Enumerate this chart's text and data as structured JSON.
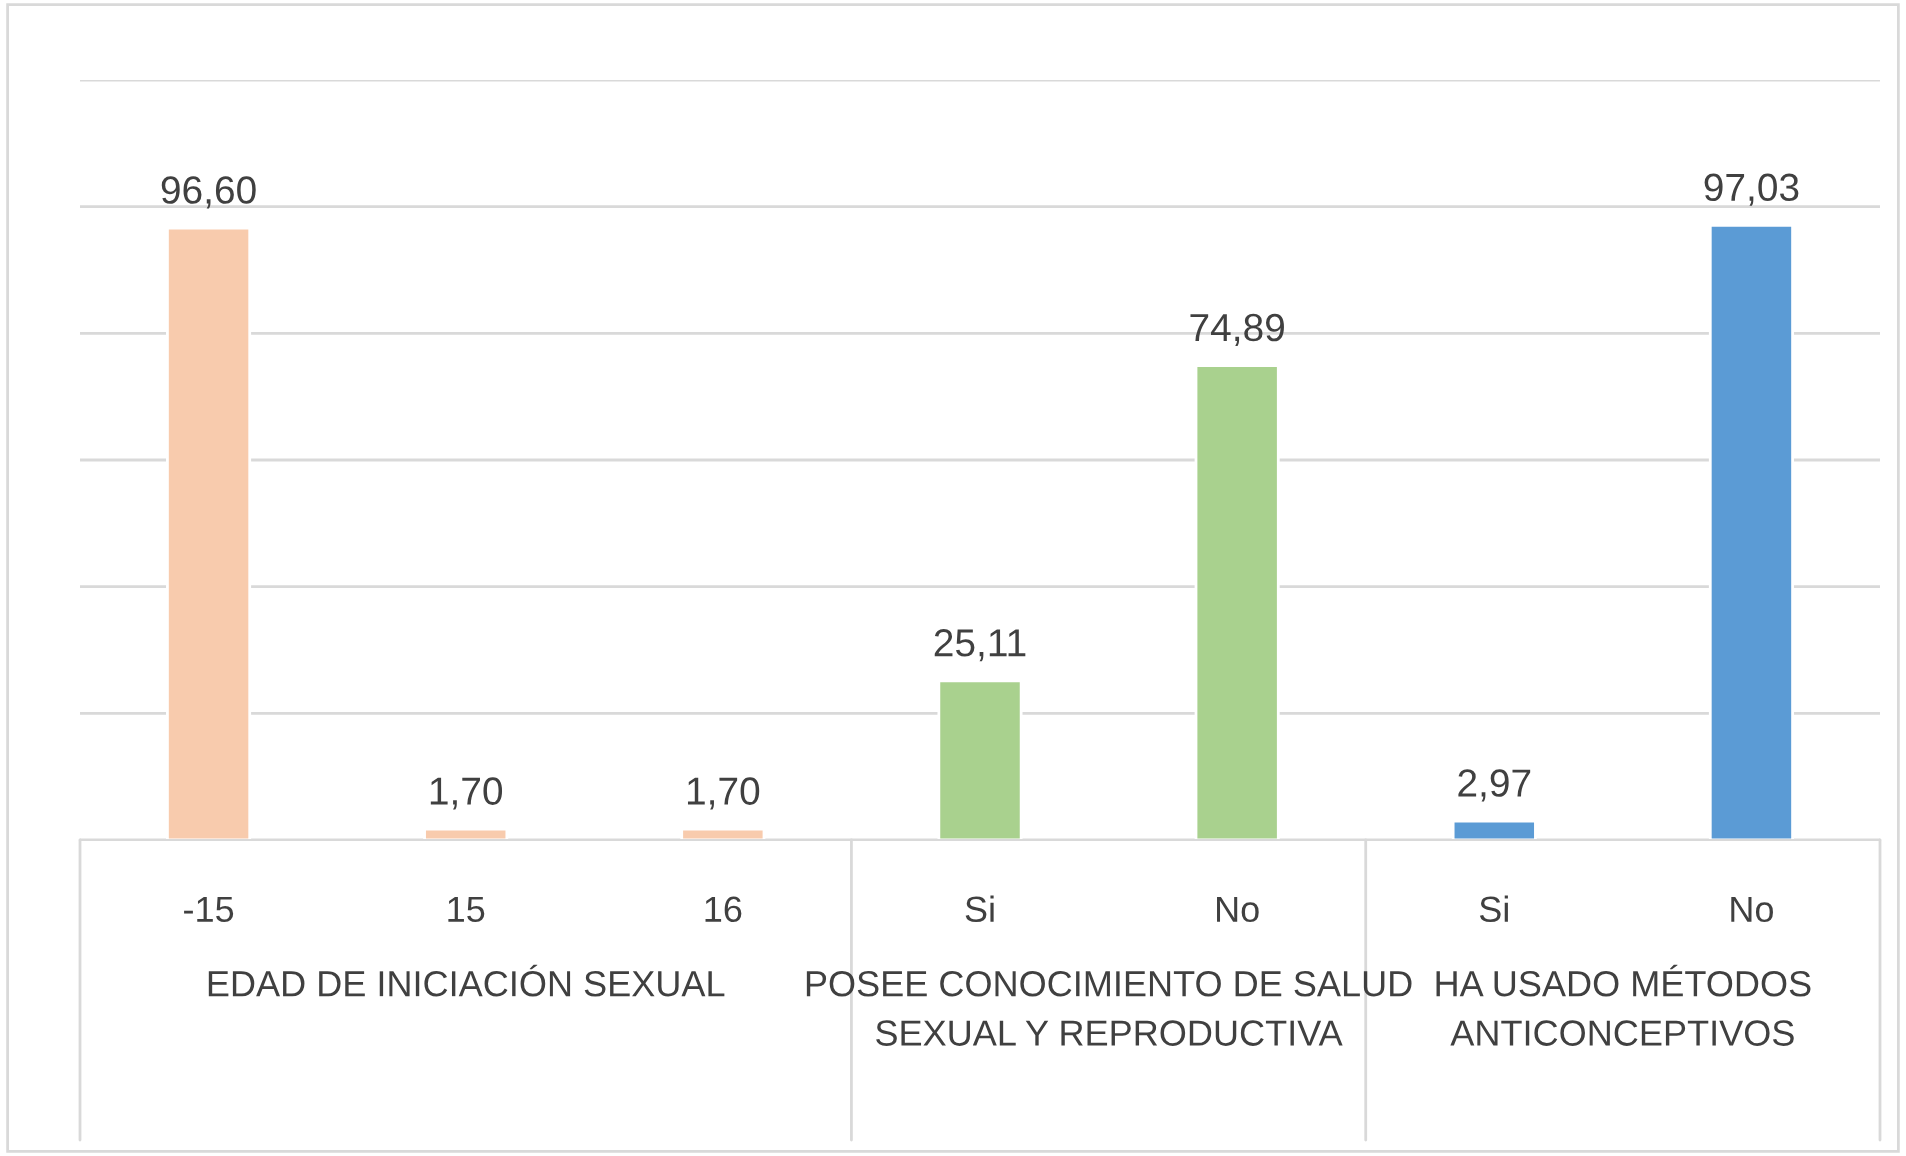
{
  "chart_data": {
    "type": "bar",
    "categories": [
      "-15",
      "15",
      "16",
      "Si",
      "No",
      "Si",
      "No"
    ],
    "values": [
      96.6,
      1.7,
      1.7,
      25.11,
      74.89,
      2.97,
      97.03
    ],
    "value_labels": [
      "96,60",
      "1,70",
      "1,70",
      "25,11",
      "74,89",
      "2,97",
      "97,03"
    ],
    "colors": [
      "#f8cbad",
      "#f8cbad",
      "#f8cbad",
      "#a9d18e",
      "#a9d18e",
      "#5b9bd5",
      "#5b9bd5"
    ],
    "annotations": [
      "EDAD DE INICIACIÓN SEXUAL",
      "POSEE CONOCIMIENTO DE SALUD SEXUAL Y REPRODUCTIVA",
      "HA USADO MÉTODOS ANTICONCEPTIVOS"
    ],
    "ylim": [
      0,
      120
    ],
    "yticks": [
      {
        "value": 0,
        "label": null
      },
      {
        "value": 20,
        "label": null
      },
      {
        "value": 40,
        "label": null
      },
      {
        "value": 60,
        "label": null
      },
      {
        "value": 80,
        "label": null
      },
      {
        "value": 100,
        "label": null
      },
      {
        "value": 120,
        "label": null
      }
    ],
    "grid": "y",
    "tick_labels": "x"
  }
}
